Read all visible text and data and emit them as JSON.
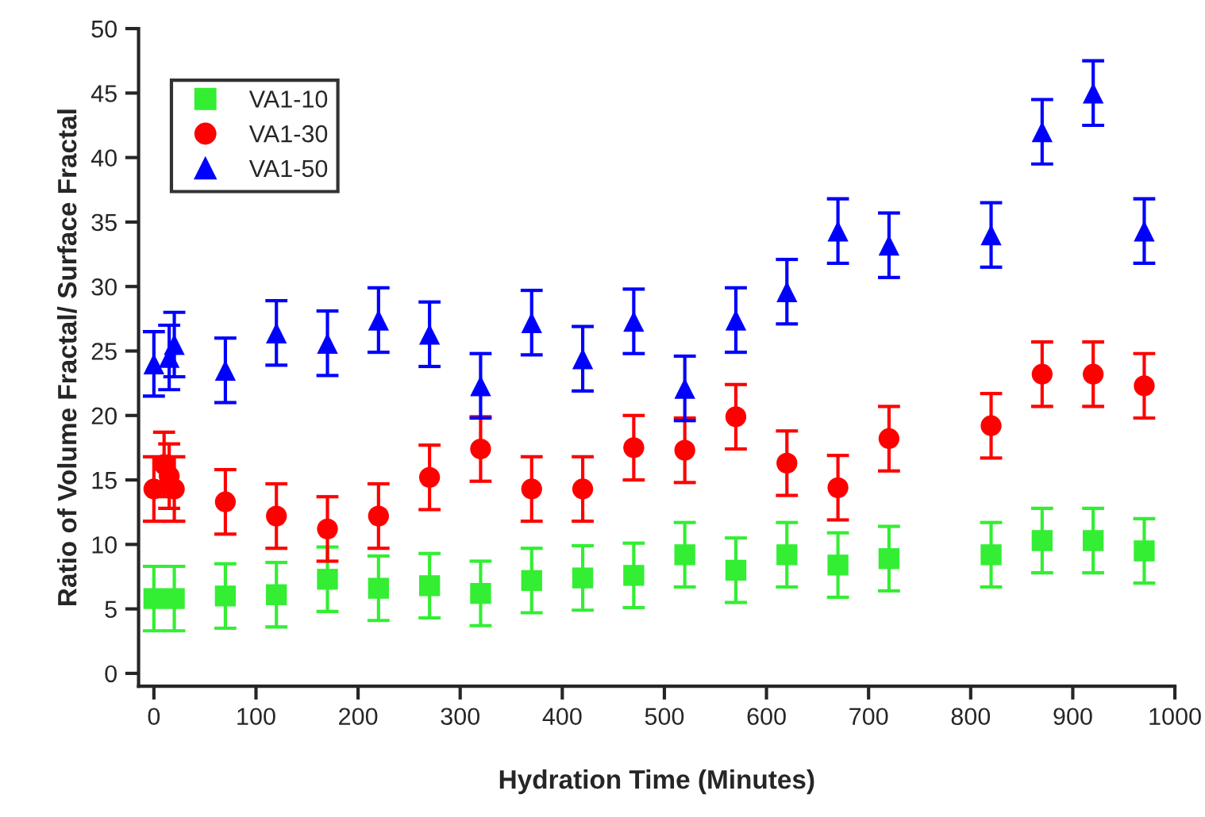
{
  "chart_data": {
    "type": "scatter",
    "xlabel": "Hydration Time (Minutes)",
    "ylabel": "Ratio of Volume Fractal/ Surface Fractal",
    "x": [
      0,
      10,
      15,
      20,
      70,
      120,
      170,
      220,
      270,
      320,
      370,
      420,
      470,
      520,
      570,
      620,
      670,
      720,
      820,
      870,
      920,
      970
    ],
    "series": [
      {
        "name": "VA1-10",
        "color": "#33ee33",
        "marker": "square",
        "x": [
          0,
          20,
          70,
          120,
          170,
          220,
          270,
          320,
          370,
          420,
          470,
          520,
          570,
          620,
          670,
          720,
          820,
          870,
          920,
          970
        ],
        "values": [
          5.8,
          5.8,
          6,
          6.1,
          7.3,
          6.6,
          6.8,
          6.2,
          7.2,
          7.4,
          7.6,
          9.2,
          8,
          9.2,
          8.4,
          8.9,
          9.2,
          10.3,
          10.3,
          9.5
        ],
        "errors": [
          2.5,
          2.5,
          2.5,
          2.5,
          2.5,
          2.5,
          2.5,
          2.5,
          2.5,
          2.5,
          2.5,
          2.5,
          2.5,
          2.5,
          2.5,
          2.5,
          2.5,
          2.5,
          2.5,
          2.5
        ]
      },
      {
        "name": "VA1-30",
        "color": "#ff0000",
        "marker": "circle",
        "values": [
          14.3,
          16.2,
          15.3,
          14.3,
          13.3,
          12.2,
          11.2,
          12.2,
          15.2,
          17.4,
          14.3,
          14.3,
          17.5,
          17.3,
          19.9,
          16.3,
          14.4,
          18.2,
          19.2,
          23.2,
          23.2,
          22.3
        ],
        "errors": [
          2.5,
          2.5,
          2.5,
          2.5,
          2.5,
          2.5,
          2.5,
          2.5,
          2.5,
          2.5,
          2.5,
          2.5,
          2.5,
          2.5,
          2.5,
          2.5,
          2.5,
          2.5,
          2.5,
          2.5,
          2.5,
          2.5
        ]
      },
      {
        "name": "VA1-50",
        "color": "#0000ff",
        "marker": "triangle",
        "x": [
          0,
          15,
          20,
          70,
          120,
          170,
          220,
          270,
          320,
          370,
          420,
          470,
          520,
          570,
          620,
          670,
          720,
          820,
          870,
          920,
          970
        ],
        "values": [
          24,
          24.5,
          25.5,
          23.5,
          26.4,
          25.6,
          27.4,
          26.3,
          22.3,
          27.2,
          24.4,
          27.3,
          22.1,
          27.4,
          29.6,
          34.3,
          33.2,
          34,
          42,
          45,
          34.3
        ],
        "errors": [
          2.5,
          2.5,
          2.5,
          2.5,
          2.5,
          2.5,
          2.5,
          2.5,
          2.5,
          2.5,
          2.5,
          2.5,
          2.5,
          2.5,
          2.5,
          2.5,
          2.5,
          2.5,
          2.5,
          2.5,
          2.5
        ]
      }
    ],
    "xlim": [
      -15,
      1000
    ],
    "xticks": [
      0,
      100,
      200,
      300,
      400,
      500,
      600,
      700,
      800,
      900,
      1000
    ],
    "ylim": [
      -1,
      50
    ],
    "yticks": [
      0,
      5,
      10,
      15,
      20,
      25,
      30,
      35,
      40,
      45,
      50
    ],
    "legend": "top left",
    "grid": false
  }
}
